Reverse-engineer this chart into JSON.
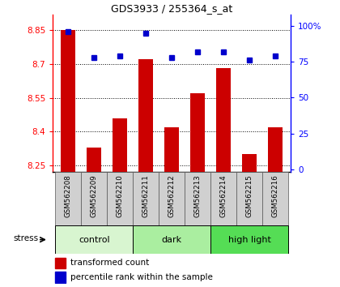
{
  "title": "GDS3933 / 255364_s_at",
  "samples": [
    "GSM562208",
    "GSM562209",
    "GSM562210",
    "GSM562211",
    "GSM562212",
    "GSM562213",
    "GSM562214",
    "GSM562215",
    "GSM562216"
  ],
  "red_values": [
    8.85,
    8.33,
    8.46,
    8.72,
    8.42,
    8.57,
    8.68,
    8.3,
    8.42
  ],
  "blue_values": [
    96,
    78,
    79,
    95,
    78,
    82,
    82,
    76,
    79
  ],
  "groups": [
    {
      "label": "control",
      "start": 0,
      "end": 3,
      "color": "#d8f5d0"
    },
    {
      "label": "dark",
      "start": 3,
      "end": 6,
      "color": "#aaeea0"
    },
    {
      "label": "high light",
      "start": 6,
      "end": 9,
      "color": "#55dd55"
    }
  ],
  "ylim_left": [
    8.22,
    8.92
  ],
  "ylim_right": [
    -2,
    108
  ],
  "yticks_left": [
    8.25,
    8.4,
    8.55,
    8.7,
    8.85
  ],
  "ytick_labels_left": [
    "8.25",
    "8.4",
    "8.55",
    "8.7",
    "8.85"
  ],
  "yticks_right": [
    0,
    25,
    50,
    75,
    100
  ],
  "ytick_labels_right": [
    "0",
    "25",
    "50",
    "75",
    "100%"
  ],
  "bar_color": "#cc0000",
  "dot_color": "#0000cc",
  "bar_bottom": 8.22,
  "stress_label": "stress",
  "legend_red": "transformed count",
  "legend_blue": "percentile rank within the sample",
  "bg_gray": "#d0d0d0",
  "fig_bg": "#ffffff"
}
